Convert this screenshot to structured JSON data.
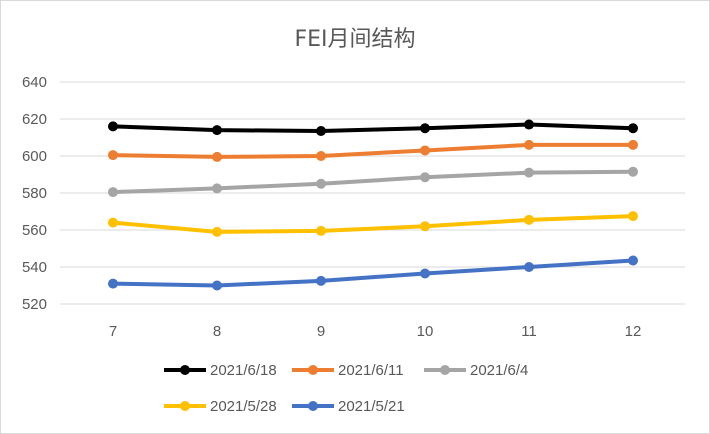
{
  "chart_data": {
    "type": "line",
    "title": "FEI月间结构",
    "xlabel": "",
    "ylabel": "",
    "categories": [
      "7",
      "8",
      "9",
      "10",
      "11",
      "12"
    ],
    "y_ticks": [
      "520",
      "540",
      "560",
      "580",
      "600",
      "620",
      "640"
    ],
    "ylim": [
      520,
      640
    ],
    "grid": true,
    "legend_position": "bottom",
    "series": [
      {
        "name": "2021/6/18",
        "color": "#000000",
        "values": [
          616,
          614,
          613.5,
          615,
          617,
          615
        ]
      },
      {
        "name": "2021/6/11",
        "color": "#ED7D31",
        "values": [
          600.5,
          599.5,
          600,
          603,
          606,
          606
        ]
      },
      {
        "name": "2021/6/4",
        "color": "#A5A5A5",
        "values": [
          580.5,
          582.5,
          585,
          588.5,
          591,
          591.5
        ]
      },
      {
        "name": "2021/5/28",
        "color": "#FFC000",
        "values": [
          564,
          559,
          559.5,
          562,
          565.5,
          567.5
        ]
      },
      {
        "name": "2021/5/21",
        "color": "#4472C4",
        "values": [
          531,
          530,
          532.5,
          536.5,
          540,
          543.5
        ]
      }
    ]
  }
}
